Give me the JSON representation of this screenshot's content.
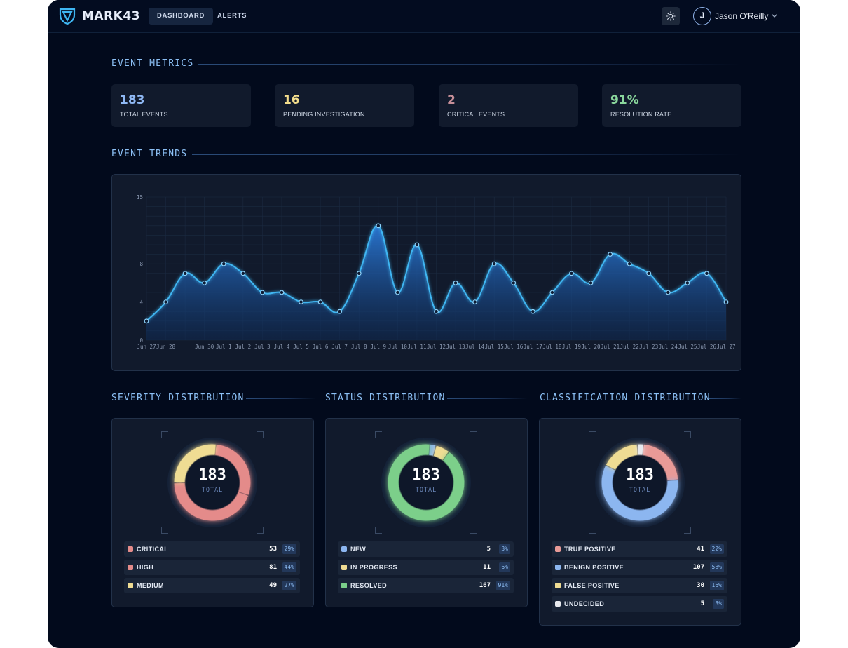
{
  "header": {
    "brand": "MARK43",
    "tabs": [
      {
        "label": "DASHBOARD",
        "active": true
      },
      {
        "label": "ALERTS",
        "active": false
      }
    ],
    "user": {
      "initial": "J",
      "name": "Jason O'Reilly"
    }
  },
  "sections": {
    "metrics_title": "EVENT METRICS",
    "trends_title": "EVENT TRENDS",
    "severity_title": "SEVERITY DISTRIBUTION",
    "status_title": "STATUS DISTRIBUTION",
    "classification_title": "CLASSIFICATION DISTRIBUTION"
  },
  "metrics": [
    {
      "value": "183",
      "label": "TOTAL EVENTS",
      "color": "#8fb8f4"
    },
    {
      "value": "16",
      "label": "PENDING INVESTIGATION",
      "color": "#f3dd8c"
    },
    {
      "value": "2",
      "label": "CRITICAL EVENTS",
      "color": "#c58e98"
    },
    {
      "value": "91%",
      "label": "RESOLUTION RATE",
      "color": "#8ad79c"
    }
  ],
  "chart_data": {
    "type": "area",
    "x": [
      "Jun 27",
      "Jun 28",
      "Jun 29",
      "Jun 30",
      "Jul 1",
      "Jul 2",
      "Jul 3",
      "Jul 4",
      "Jul 5",
      "Jul 6",
      "Jul 7",
      "Jul 8",
      "Jul 9",
      "Jul 10",
      "Jul 11",
      "Jul 12",
      "Jul 13",
      "Jul 14",
      "Jul 15",
      "Jul 16",
      "Jul 17",
      "Jul 18",
      "Jul 19",
      "Jul 20",
      "Jul 21",
      "Jul 22",
      "Jul 23",
      "Jul 24",
      "Jul 25",
      "Jul 26",
      "Jul 27"
    ],
    "x_tick_labels": [
      "Jun 27",
      "Jun 28",
      "",
      "Jun 30",
      "Jul 1",
      "Jul 2",
      "Jul 3",
      "Jul 4",
      "Jul 5",
      "Jul 6",
      "Jul 7",
      "Jul 8",
      "Jul 9",
      "Jul 10",
      "Jul 11",
      "Jul 12",
      "Jul 13",
      "Jul 14",
      "Jul 15",
      "Jul 16",
      "Jul 17",
      "Jul 18",
      "Jul 19",
      "Jul 20",
      "Jul 21",
      "Jul 22",
      "Jul 23",
      "Jul 24",
      "Jul 25",
      "Jul 26",
      "Jul 27"
    ],
    "series": [
      {
        "values": [
          2,
          4,
          7,
          6,
          8,
          7,
          5,
          5,
          4,
          4,
          3,
          7,
          12,
          5,
          10,
          3,
          6,
          4,
          8,
          6,
          3,
          5,
          7,
          6,
          9,
          8,
          7,
          5,
          6,
          7,
          4
        ]
      }
    ],
    "y_ticks": [
      0,
      4,
      8,
      15
    ],
    "ylim": [
      0,
      15
    ],
    "grid": true,
    "line_color": "#3fb6f2"
  },
  "distributions": [
    {
      "total": "183",
      "total_label": "TOTAL",
      "items": [
        {
          "label": "CRITICAL",
          "count": "53",
          "pct": "29%",
          "value": 53,
          "color": "#e48b8a"
        },
        {
          "label": "HIGH",
          "count": "81",
          "pct": "44%",
          "value": 81,
          "color": "#e48b8a"
        },
        {
          "label": "MEDIUM",
          "count": "49",
          "pct": "27%",
          "value": 49,
          "color": "#efdc93"
        }
      ]
    },
    {
      "total": "183",
      "total_label": "TOTAL",
      "items": [
        {
          "label": "NEW",
          "count": "5",
          "pct": "3%",
          "value": 5,
          "color": "#8cb6f0"
        },
        {
          "label": "IN PROGRESS",
          "count": "11",
          "pct": "6%",
          "value": 11,
          "color": "#efdc93"
        },
        {
          "label": "RESOLVED",
          "count": "167",
          "pct": "91%",
          "value": 167,
          "color": "#7bcf8a"
        }
      ]
    },
    {
      "total": "183",
      "total_label": "TOTAL",
      "items": [
        {
          "label": "TRUE POSITIVE",
          "count": "41",
          "pct": "22%",
          "value": 41,
          "color": "#e89a97"
        },
        {
          "label": "BENIGN POSITIVE",
          "count": "107",
          "pct": "58%",
          "value": 107,
          "color": "#8cb6f0"
        },
        {
          "label": "FALSE POSITIVE",
          "count": "30",
          "pct": "16%",
          "value": 30,
          "color": "#efdc93"
        },
        {
          "label": "UNDECIDED",
          "count": "5",
          "pct": "3%",
          "value": 5,
          "color": "#e7e9ee"
        }
      ]
    }
  ]
}
